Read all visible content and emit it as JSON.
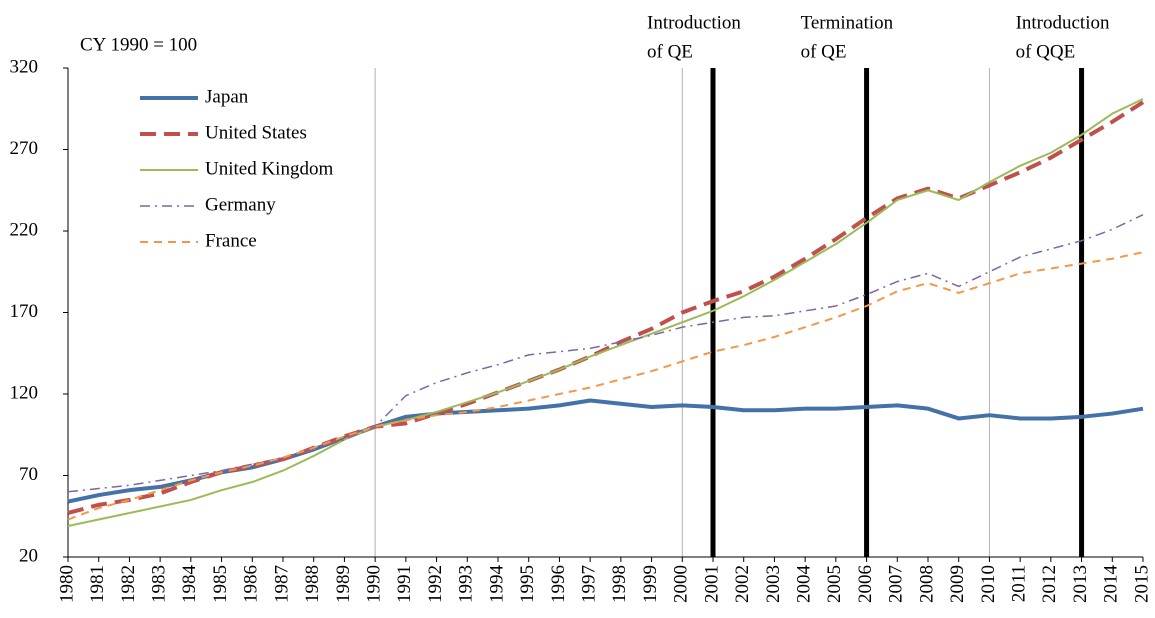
{
  "chart_data": {
    "type": "line",
    "note": "CY 1990 = 100",
    "categories": [
      "1980",
      "1981",
      "1982",
      "1983",
      "1984",
      "1985",
      "1986",
      "1987",
      "1988",
      "1989",
      "1990",
      "1991",
      "1992",
      "1993",
      "1994",
      "1995",
      "1996",
      "1997",
      "1998",
      "1999",
      "2000",
      "2001",
      "2002",
      "2003",
      "2004",
      "2005",
      "2006",
      "2007",
      "2008",
      "2009",
      "2010",
      "2011",
      "2012",
      "2013",
      "2014",
      "2015"
    ],
    "series": [
      {
        "name": "Japan",
        "color": "#4472a8",
        "style": "solid",
        "width": 4,
        "values": [
          54,
          58,
          61,
          63,
          67,
          72,
          75,
          80,
          86,
          93,
          100,
          106,
          108,
          109,
          110,
          111,
          113,
          116,
          114,
          112,
          113,
          112,
          110,
          110,
          111,
          111,
          112,
          113,
          111,
          105,
          107,
          105,
          105,
          106,
          108,
          111
        ]
      },
      {
        "name": "United States",
        "color": "#c0504d",
        "style": "dashed",
        "width": 4,
        "values": [
          47,
          52,
          55,
          59,
          66,
          72,
          76,
          80,
          87,
          94,
          100,
          102,
          108,
          114,
          121,
          128,
          135,
          143,
          152,
          160,
          170,
          177,
          183,
          192,
          203,
          215,
          228,
          240,
          246,
          240,
          248,
          256,
          265,
          276,
          287,
          299
        ]
      },
      {
        "name": "United Kingdom",
        "color": "#9bbb59",
        "style": "solid",
        "width": 2,
        "values": [
          39,
          43,
          47,
          51,
          55,
          61,
          66,
          73,
          82,
          92,
          100,
          104,
          109,
          115,
          121,
          128,
          135,
          143,
          150,
          157,
          164,
          171,
          180,
          190,
          201,
          212,
          225,
          239,
          245,
          239,
          250,
          260,
          268,
          279,
          292,
          301
        ]
      },
      {
        "name": "Germany",
        "color": "#8064a2",
        "style": "dashdot",
        "width": 1.5,
        "values": [
          60,
          62,
          64,
          67,
          70,
          73,
          77,
          81,
          86,
          92,
          100,
          119,
          127,
          133,
          138,
          144,
          146,
          148,
          152,
          156,
          161,
          164,
          167,
          168,
          171,
          174,
          181,
          189,
          194,
          186,
          195,
          204,
          209,
          214,
          221,
          230
        ]
      },
      {
        "name": "France",
        "color": "#f79646",
        "style": "dashed",
        "width": 2,
        "values": [
          43,
          50,
          55,
          61,
          67,
          72,
          76,
          81,
          87,
          94,
          100,
          104,
          107,
          109,
          112,
          116,
          120,
          124,
          129,
          134,
          140,
          146,
          150,
          155,
          161,
          167,
          174,
          183,
          188,
          182,
          188,
          194,
          197,
          200,
          203,
          207
        ]
      }
    ],
    "ylim": [
      20,
      320
    ],
    "yticks": [
      20,
      70,
      120,
      170,
      220,
      270,
      320
    ],
    "xgrid": [
      "1990",
      "2000",
      "2010"
    ],
    "legend": "upper left",
    "annotations": [
      {
        "x": "2001",
        "lines": [
          "Introduction",
          "of QE"
        ]
      },
      {
        "x": "2006",
        "lines": [
          "Termination",
          "of QE"
        ]
      },
      {
        "x": "2013",
        "lines": [
          "Introduction",
          "of QQE"
        ]
      }
    ]
  }
}
